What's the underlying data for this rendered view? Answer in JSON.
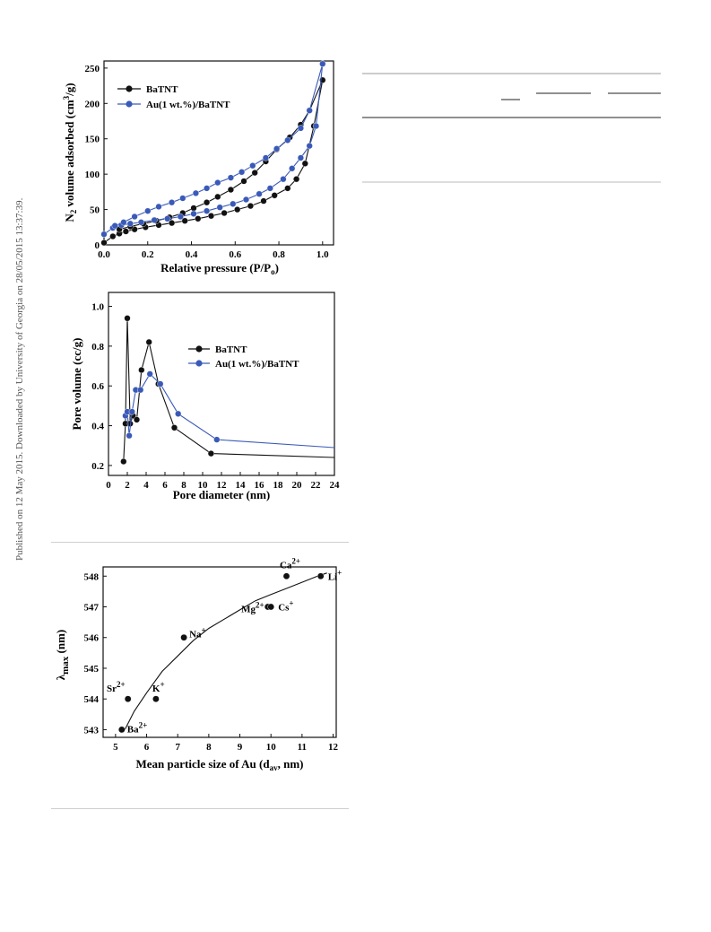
{
  "sidebar": {
    "text": "Published on 12 May 2015. Downloaded by University of Georgia on 28/05/2015 13:37:39."
  },
  "colors": {
    "black_series": "#111111",
    "blue_series": "#3a5ab8",
    "rule": "#cfcfcf"
  },
  "chart_data": [
    {
      "type": "line",
      "ylabel": "N2 volume adsorbed (cm3/g)",
      "xlabel": "Relative pressure (P/Po)",
      "xlim": [
        0.0,
        1.05
      ],
      "ylim": [
        0,
        260
      ],
      "x_ticks": [
        "0.0",
        "0.2",
        "0.4",
        "0.6",
        "0.8",
        "1.0"
      ],
      "y_ticks": [
        "0",
        "50",
        "100",
        "150",
        "200",
        "250"
      ],
      "legend_position": "top-left",
      "series": [
        {
          "name": "BaTNT",
          "adsorption": [
            [
              0.0,
              3
            ],
            [
              0.04,
              12
            ],
            [
              0.07,
              16
            ],
            [
              0.1,
              19
            ],
            [
              0.14,
              22
            ],
            [
              0.19,
              25
            ],
            [
              0.25,
              28
            ],
            [
              0.31,
              31
            ],
            [
              0.37,
              34
            ],
            [
              0.43,
              37
            ],
            [
              0.49,
              41
            ],
            [
              0.55,
              45
            ],
            [
              0.61,
              50
            ],
            [
              0.67,
              55
            ],
            [
              0.73,
              62
            ],
            [
              0.78,
              70
            ],
            [
              0.84,
              80
            ],
            [
              0.88,
              93
            ],
            [
              0.92,
              115
            ],
            [
              0.96,
              168
            ],
            [
              1.0,
              233
            ]
          ],
          "desorption": [
            [
              1.0,
              233
            ],
            [
              0.94,
              190
            ],
            [
              0.9,
              170
            ],
            [
              0.85,
              152
            ],
            [
              0.79,
              135
            ],
            [
              0.74,
              118
            ],
            [
              0.69,
              102
            ],
            [
              0.64,
              90
            ],
            [
              0.58,
              78
            ],
            [
              0.52,
              68
            ],
            [
              0.47,
              60
            ],
            [
              0.41,
              52
            ],
            [
              0.36,
              45
            ],
            [
              0.3,
              39
            ],
            [
              0.24,
              34
            ],
            [
              0.18,
              30
            ],
            [
              0.12,
              26
            ],
            [
              0.07,
              22
            ]
          ]
        },
        {
          "name": "Au(1 wt.%)/BaTNT",
          "adsorption": [
            [
              0.0,
              15
            ],
            [
              0.04,
              24
            ],
            [
              0.08,
              28
            ],
            [
              0.12,
              30
            ],
            [
              0.17,
              32
            ],
            [
              0.23,
              35
            ],
            [
              0.29,
              37
            ],
            [
              0.35,
              40
            ],
            [
              0.41,
              44
            ],
            [
              0.47,
              48
            ],
            [
              0.53,
              53
            ],
            [
              0.59,
              58
            ],
            [
              0.65,
              64
            ],
            [
              0.71,
              72
            ],
            [
              0.76,
              80
            ],
            [
              0.82,
              93
            ],
            [
              0.86,
              108
            ],
            [
              0.9,
              123
            ],
            [
              0.94,
              140
            ],
            [
              0.97,
              168
            ],
            [
              1.0,
              256
            ]
          ],
          "desorption": [
            [
              1.0,
              256
            ],
            [
              0.94,
              190
            ],
            [
              0.9,
              165
            ],
            [
              0.84,
              148
            ],
            [
              0.79,
              136
            ],
            [
              0.74,
              123
            ],
            [
              0.68,
              112
            ],
            [
              0.63,
              103
            ],
            [
              0.58,
              95
            ],
            [
              0.52,
              88
            ],
            [
              0.47,
              80
            ],
            [
              0.42,
              73
            ],
            [
              0.36,
              66
            ],
            [
              0.31,
              60
            ],
            [
              0.25,
              54
            ],
            [
              0.2,
              48
            ],
            [
              0.14,
              40
            ],
            [
              0.09,
              32
            ],
            [
              0.05,
              27
            ]
          ]
        }
      ]
    },
    {
      "type": "line",
      "ylabel": "Pore volume (cc/g)",
      "xlabel": "Pore diameter (nm)",
      "xlim": [
        0,
        24
      ],
      "ylim": [
        0.15,
        1.07
      ],
      "x_ticks": [
        "0",
        "2",
        "4",
        "6",
        "8",
        "10",
        "12",
        "14",
        "16",
        "18",
        "20",
        "22",
        "24"
      ],
      "y_ticks": [
        "0.2",
        "0.4",
        "0.6",
        "0.8",
        "1.0"
      ],
      "legend_position": "top-right",
      "series": [
        {
          "name": "BaTNT",
          "points": [
            [
              1.6,
              0.22
            ],
            [
              1.8,
              0.41
            ],
            [
              2.0,
              0.94
            ],
            [
              2.3,
              0.41
            ],
            [
              2.6,
              0.45
            ],
            [
              3.0,
              0.43
            ],
            [
              3.5,
              0.68
            ],
            [
              4.3,
              0.82
            ],
            [
              5.3,
              0.61
            ],
            [
              7.0,
              0.39
            ],
            [
              10.9,
              0.26
            ],
            [
              24,
              0.24
            ]
          ]
        },
        {
          "name": "Au(1 wt.%)/BaTNT",
          "points": [
            [
              1.8,
              0.45
            ],
            [
              2.0,
              0.47
            ],
            [
              2.2,
              0.35
            ],
            [
              2.5,
              0.47
            ],
            [
              2.9,
              0.58
            ],
            [
              3.4,
              0.58
            ],
            [
              4.4,
              0.66
            ],
            [
              5.5,
              0.61
            ],
            [
              7.4,
              0.46
            ],
            [
              11.5,
              0.33
            ],
            [
              24,
              0.29
            ]
          ]
        }
      ]
    },
    {
      "type": "scatter",
      "ylabel": "λmax (nm)",
      "xlabel": "Mean particle size of Au (dav, nm)",
      "xlim": [
        4.6,
        12.1
      ],
      "ylim": [
        542.75,
        548.3
      ],
      "x_ticks": [
        "5",
        "6",
        "7",
        "8",
        "9",
        "10",
        "11",
        "12"
      ],
      "y_ticks": [
        "543",
        "544",
        "545",
        "546",
        "547",
        "548"
      ],
      "points": [
        {
          "x": 5.2,
          "y": 543,
          "label": "Ba2+"
        },
        {
          "x": 5.4,
          "y": 544,
          "label": "Sr2+"
        },
        {
          "x": 6.3,
          "y": 544,
          "label": "K+"
        },
        {
          "x": 7.2,
          "y": 546,
          "label": "Na+"
        },
        {
          "x": 9.9,
          "y": 547,
          "label": "Mg2+"
        },
        {
          "x": 10.0,
          "y": 547,
          "label": "Cs+"
        },
        {
          "x": 10.5,
          "y": 548,
          "label": "Ca2+"
        },
        {
          "x": 11.6,
          "y": 548,
          "label": "Li+"
        }
      ],
      "fit_curve": [
        [
          5.3,
          543.0
        ],
        [
          5.6,
          543.6
        ],
        [
          6.0,
          544.2
        ],
        [
          6.5,
          544.9
        ],
        [
          7.0,
          545.4
        ],
        [
          7.5,
          545.9
        ],
        [
          8.0,
          546.3
        ],
        [
          8.5,
          546.6
        ],
        [
          9.0,
          546.9
        ],
        [
          9.5,
          547.2
        ],
        [
          10.0,
          547.4
        ],
        [
          10.5,
          547.6
        ],
        [
          11.0,
          547.8
        ],
        [
          11.5,
          548.0
        ],
        [
          11.8,
          548.1
        ]
      ]
    }
  ]
}
